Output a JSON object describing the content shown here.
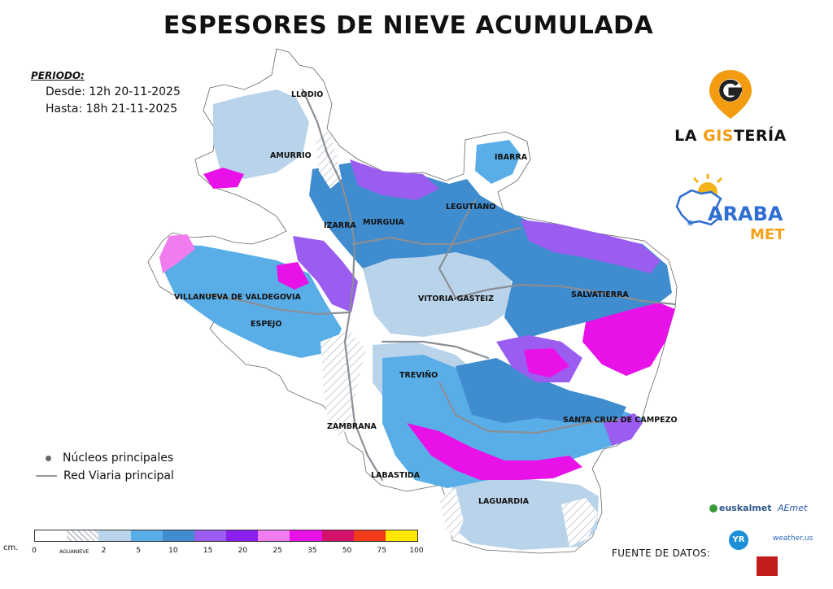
{
  "title": "ESPESORES DE NIEVE ACUMULADA",
  "period": {
    "label": "PERIODO:",
    "from": "Desde: 12h  20-11-2025",
    "to": "Hasta:  18h  21-11-2025"
  },
  "towns": [
    "LLODIO",
    "AMURRIO",
    "IBARRA",
    "LEGUTIANO",
    "IZARRA",
    "MURGUIA",
    "VILLANUEVA DE VALDEGOVIA",
    "VITORIA-GASTEIZ",
    "SALVATIERRA",
    "ESPEJO",
    "TREVIÑO",
    "ZAMBRANA",
    "SANTA CRUZ DE CAMPEZO",
    "LABASTIDA",
    "LAGUARDIA"
  ],
  "legend": {
    "nucleos": "Núcleos principales",
    "red_viaria": "Red Viaria principal"
  },
  "scale": {
    "unit": "cm.",
    "ticks": [
      "0",
      "AGUANIEVE",
      "2",
      "5",
      "10",
      "15",
      "20",
      "25",
      "35",
      "50",
      "75",
      "100"
    ],
    "colors": [
      "#ffffff",
      "#e8edf4",
      "#b9d3ea",
      "#5aaee8",
      "#3f8ccf",
      "#9b5cf0",
      "#8a1ff0",
      "#f07cf0",
      "#e812e8",
      "#d4126a",
      "#f03a1a",
      "#ffe800"
    ]
  },
  "logos": {
    "gisteria_prefix": "LA ",
    "gisteria_accent": "GIS",
    "gisteria_suffix": "TERÍA",
    "arabamet_top": "ARABA",
    "arabamet_bottom": "MET"
  },
  "sources": {
    "label": "FUENTE DE DATOS:",
    "euskalmet": "euskalmet",
    "aemet": "AEmet",
    "yr": "YR",
    "weather": "weather.us"
  }
}
